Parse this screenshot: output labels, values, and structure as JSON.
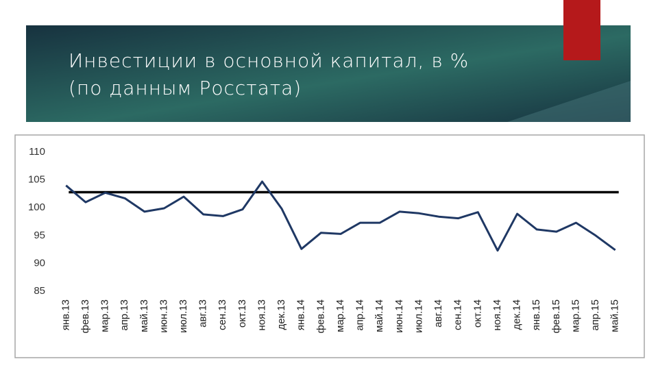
{
  "chart_data": {
    "type": "line",
    "title": [
      "Инвестиции в основной капитал, в %",
      "(по данным Росстата)"
    ],
    "categories": [
      "янв.13",
      "фев.13",
      "мар.13",
      "апр.13",
      "май.13",
      "июн.13",
      "июл.13",
      "авг.13",
      "сен.13",
      "окт.13",
      "ноя.13",
      "дек.13",
      "янв.14",
      "фев.14",
      "мар.14",
      "апр.14",
      "май.14",
      "июн.14",
      "июл.14",
      "авг.14",
      "сен.14",
      "окт.14",
      "ноя.14",
      "дек.14",
      "янв.15",
      "фев.15",
      "мар.15",
      "апр.15",
      "май.15"
    ],
    "values": [
      104,
      101,
      102.7,
      101.7,
      99.3,
      99.9,
      102,
      98.8,
      98.5,
      99.7,
      104.7,
      99.8,
      92.6,
      95.5,
      95.3,
      97.3,
      97.3,
      99.3,
      99,
      98.4,
      98.1,
      99.2,
      92.3,
      98.9,
      96.1,
      95.7,
      97.3,
      95,
      92.4
    ],
    "color": "#1f3864",
    "reference_line": 102.8,
    "reference_color": "#000000",
    "ylim": [
      85,
      110
    ],
    "yticks": [
      85,
      90,
      95,
      100,
      105,
      110
    ],
    "grid": false
  }
}
